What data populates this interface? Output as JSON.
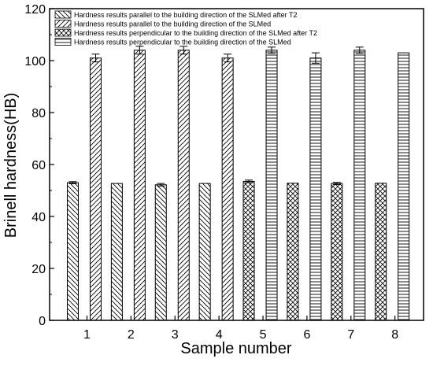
{
  "chart_data": {
    "type": "bar",
    "title": "",
    "xlabel": "Sample number",
    "ylabel": "Brinell hardness(HB)",
    "ylim": [
      0,
      120
    ],
    "yticks": [
      0,
      20,
      40,
      60,
      80,
      100,
      120
    ],
    "categories": [
      "1",
      "2",
      "3",
      "4",
      "5",
      "6",
      "7",
      "8"
    ],
    "grid": false,
    "legend_position": "top",
    "series": [
      {
        "name": "Hardness results parallel to the building direction of the SLMed after T2",
        "pattern": "diag-back",
        "values": [
          53,
          52.7,
          52.2,
          52.7,
          null,
          null,
          null,
          null
        ],
        "errors": [
          0.4,
          0,
          0.5,
          0,
          null,
          null,
          null,
          null
        ]
      },
      {
        "name": "Hardness results parallel to the building direction of the SLMed",
        "pattern": "diag-fwd",
        "values": [
          101,
          104,
          104,
          101,
          null,
          null,
          null,
          null
        ],
        "errors": [
          1.5,
          1.5,
          1.5,
          1.5,
          null,
          null,
          null,
          null
        ]
      },
      {
        "name": "Hardness results perpendicular to the building direction of the SLMed after T2",
        "pattern": "crosshatch",
        "values": [
          null,
          null,
          null,
          null,
          53.5,
          52.8,
          52.7,
          52.8
        ],
        "errors": [
          null,
          null,
          null,
          null,
          0.5,
          0,
          0.4,
          0
        ]
      },
      {
        "name": "Hardness results perpendicular to the building direction of the SLMed",
        "pattern": "horizontal",
        "values": [
          null,
          null,
          null,
          null,
          104,
          101,
          104,
          103
        ],
        "errors": [
          null,
          null,
          null,
          null,
          1.2,
          2,
          1.2,
          0
        ]
      }
    ]
  }
}
